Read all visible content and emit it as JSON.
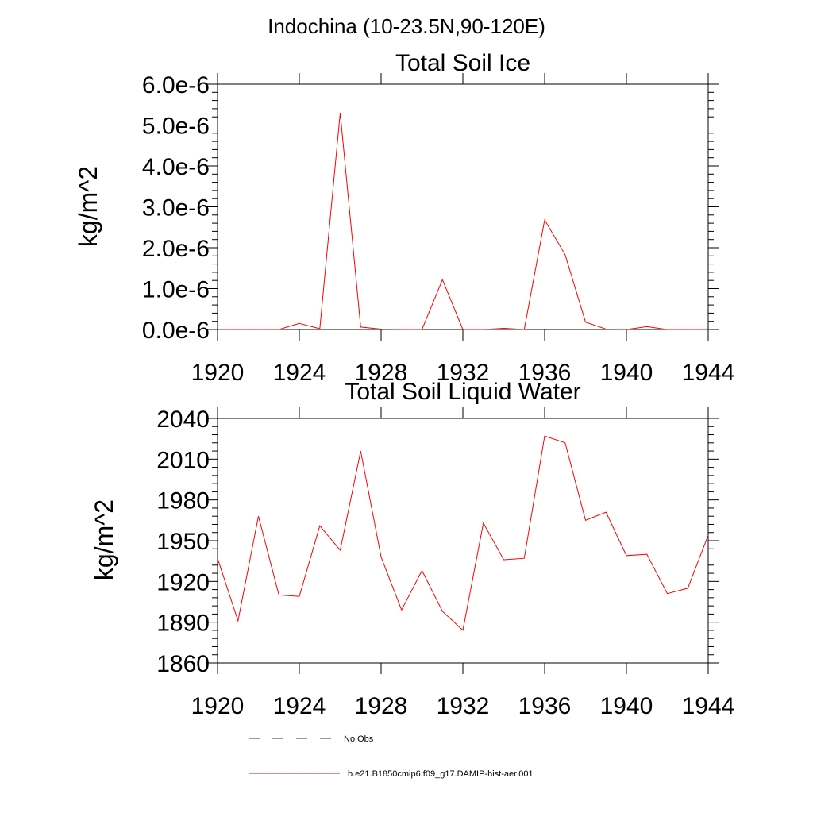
{
  "figure": {
    "title": "Indochina (10-23.5N,90-120E)"
  },
  "legend": [
    {
      "label": "No Obs",
      "color": "#2b2b7a",
      "style": "dashed"
    },
    {
      "label": "b.e21.B1850cmip6.f09_g17.DAMIP-hist-aer.001",
      "color": "#ff0000",
      "style": "solid"
    }
  ],
  "chart_data": [
    {
      "type": "line",
      "title": "Total Soil Ice",
      "xlabel": "",
      "ylabel": "kg/m^2",
      "xlim": [
        1920,
        1944
      ],
      "ylim": [
        0,
        6e-06
      ],
      "xticks": [
        1920,
        1924,
        1928,
        1932,
        1936,
        1940,
        1944
      ],
      "xtick_labels": [
        "1920",
        "1924",
        "1928",
        "1932",
        "1936",
        "1940",
        "1944"
      ],
      "yticks": [
        0,
        1e-06,
        2e-06,
        3e-06,
        4e-06,
        5e-06,
        6e-06
      ],
      "ytick_labels": [
        "0.0e-6",
        "1.0e-6",
        "2.0e-6",
        "3.0e-6",
        "4.0e-6",
        "5.0e-6",
        "6.0e-6"
      ],
      "grid": false,
      "series": [
        {
          "name": "b.e21.B1850cmip6.f09_g17.DAMIP-hist-aer.001",
          "color": "#ff0000",
          "x": [
            1920,
            1921,
            1922,
            1923,
            1924,
            1925,
            1926,
            1927,
            1928,
            1929,
            1930,
            1931,
            1932,
            1933,
            1934,
            1935,
            1936,
            1937,
            1938,
            1939,
            1940,
            1941,
            1942,
            1943,
            1944
          ],
          "y": [
            0,
            0,
            0,
            0,
            1.5e-07,
            2e-08,
            5.3e-06,
            6e-08,
            1e-08,
            0,
            0,
            1.22e-06,
            0,
            0,
            3e-08,
            0,
            2.68e-06,
            1.83e-06,
            1.8e-07,
            1e-08,
            0,
            7e-08,
            0,
            0,
            0
          ]
        }
      ]
    },
    {
      "type": "line",
      "title": "Total Soil Liquid Water",
      "xlabel": "",
      "ylabel": "kg/m^2",
      "xlim": [
        1920,
        1944
      ],
      "ylim": [
        1860,
        2040
      ],
      "xticks": [
        1920,
        1924,
        1928,
        1932,
        1936,
        1940,
        1944
      ],
      "xtick_labels": [
        "1920",
        "1924",
        "1928",
        "1932",
        "1936",
        "1940",
        "1944"
      ],
      "yticks": [
        1860,
        1890,
        1920,
        1950,
        1980,
        2010,
        2040
      ],
      "ytick_labels": [
        "1860",
        "1890",
        "1920",
        "1950",
        "1980",
        "2010",
        "2040"
      ],
      "grid": false,
      "series": [
        {
          "name": "b.e21.B1850cmip6.f09_g17.DAMIP-hist-aer.001",
          "color": "#ff0000",
          "x": [
            1920,
            1921,
            1922,
            1923,
            1924,
            1925,
            1926,
            1927,
            1928,
            1929,
            1930,
            1931,
            1932,
            1933,
            1934,
            1935,
            1936,
            1937,
            1938,
            1939,
            1940,
            1941,
            1942,
            1943,
            1944
          ],
          "y": [
            1937,
            1891,
            1968,
            1910,
            1909,
            1961,
            1943,
            2016,
            1938,
            1899,
            1928,
            1898,
            1884,
            1963,
            1936,
            1937,
            2027,
            2022,
            1965,
            1971,
            1939,
            1940,
            1911,
            1915,
            1954
          ]
        }
      ]
    }
  ]
}
